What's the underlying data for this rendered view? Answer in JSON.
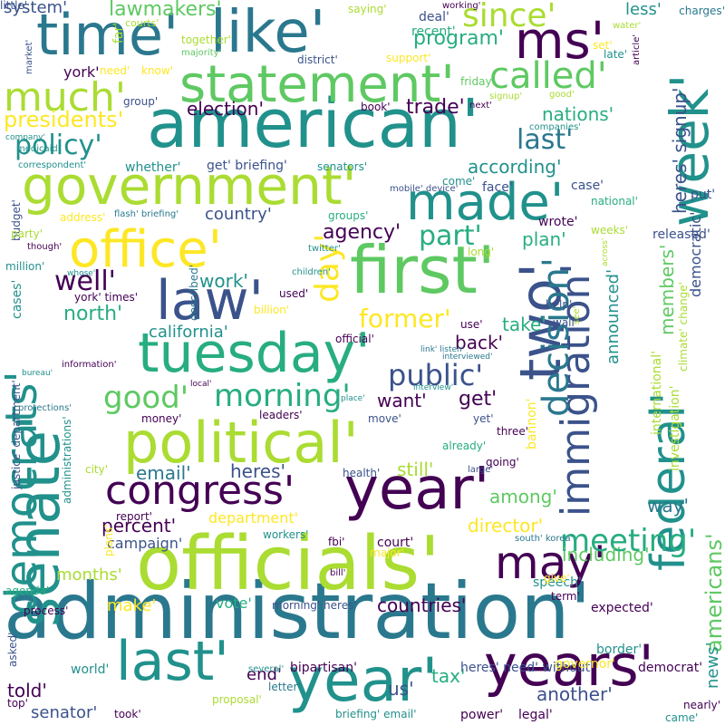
{
  "palette": [
    "#440154",
    "#3b528b",
    "#21918c",
    "#2a788e",
    "#27ad81",
    "#5ec962",
    "#aadc32",
    "#fde725"
  ],
  "words": [
    {
      "text": "administration'",
      "color": "#2a788e",
      "rotated": false
    },
    {
      "text": "officials'",
      "color": "#aadc32",
      "rotated": false
    },
    {
      "text": "american'",
      "color": "#21918c",
      "rotated": false
    },
    {
      "text": "senate'",
      "color": "#21918c",
      "rotated": true
    },
    {
      "text": "two'",
      "color": "#3b528b",
      "rotated": true
    },
    {
      "text": "year'",
      "color": "#440154",
      "rotated": false
    },
    {
      "text": "first'",
      "color": "#5ec962",
      "rotated": false
    },
    {
      "text": "government'",
      "color": "#aadc32",
      "rotated": false
    },
    {
      "text": "political'",
      "color": "#aadc32",
      "rotated": false
    },
    {
      "text": "tuesday'",
      "color": "#27ad81",
      "rotated": false
    },
    {
      "text": "statement'",
      "color": "#5ec962",
      "rotated": false
    },
    {
      "text": "like'",
      "color": "#2a788e",
      "rotated": false
    },
    {
      "text": "time'",
      "color": "#2a788e",
      "rotated": false
    },
    {
      "text": "ms'",
      "color": "#440154",
      "rotated": false
    },
    {
      "text": "week'",
      "color": "#21918c",
      "rotated": true
    },
    {
      "text": "federal'",
      "color": "#21918c",
      "rotated": true
    },
    {
      "text": "immigration'",
      "color": "#3b528b",
      "rotated": true
    },
    {
      "text": "democrats'",
      "color": "#21918c",
      "rotated": true
    },
    {
      "text": "office'",
      "color": "#fde725",
      "rotated": false
    },
    {
      "text": "law'",
      "color": "#3b528b",
      "rotated": false
    },
    {
      "text": "made'",
      "color": "#21918c",
      "rotated": false
    },
    {
      "text": "years'",
      "color": "#440154",
      "rotated": false
    },
    {
      "text": "last'",
      "color": "#21918c",
      "rotated": false
    },
    {
      "text": "year'",
      "color": "#21918c",
      "rotated": false
    },
    {
      "text": "congress'",
      "color": "#440154",
      "rotated": false
    },
    {
      "text": "may'",
      "color": "#440154",
      "rotated": false
    },
    {
      "text": "much'",
      "color": "#aadc32",
      "rotated": false
    },
    {
      "text": "called'",
      "color": "#5ec962",
      "rotated": false
    },
    {
      "text": "since'",
      "color": "#aadc32",
      "rotated": false
    },
    {
      "text": "meeting'",
      "color": "#27ad81",
      "rotated": false
    },
    {
      "text": "decision'",
      "color": "#2a788e",
      "rotated": true
    },
    {
      "text": "day'",
      "color": "#fde725",
      "rotated": true
    },
    {
      "text": "public'",
      "color": "#3b528b",
      "rotated": false
    },
    {
      "text": "morning'",
      "color": "#27ad81",
      "rotated": false
    },
    {
      "text": "good'",
      "color": "#5ec962",
      "rotated": false
    },
    {
      "text": "policy'",
      "color": "#21918c",
      "rotated": false
    },
    {
      "text": "last'",
      "color": "#2a788e",
      "rotated": false
    },
    {
      "text": "part'",
      "color": "#27ad81",
      "rotated": false
    },
    {
      "text": "former'",
      "color": "#fde725",
      "rotated": false
    },
    {
      "text": "well'",
      "color": "#440154",
      "rotated": false
    },
    {
      "text": "presidents'",
      "color": "#fde725",
      "rotated": false
    },
    {
      "text": "program'",
      "color": "#27ad81",
      "rotated": false
    },
    {
      "text": "lawmakers'",
      "color": "#5ec962",
      "rotated": false
    },
    {
      "text": "election'",
      "color": "#440154",
      "rotated": false
    },
    {
      "text": "trade'",
      "color": "#440154",
      "rotated": false
    },
    {
      "text": "nations'",
      "color": "#27ad81",
      "rotated": false
    },
    {
      "text": "according'",
      "color": "#21918c",
      "rotated": false
    },
    {
      "text": "agency'",
      "color": "#440154",
      "rotated": false
    },
    {
      "text": "plan'",
      "color": "#27ad81",
      "rotated": false
    },
    {
      "text": "country'",
      "color": "#3b528b",
      "rotated": false
    },
    {
      "text": "california'",
      "color": "#21918c",
      "rotated": false
    },
    {
      "text": "north'",
      "color": "#27ad81",
      "rotated": false
    },
    {
      "text": "work'",
      "color": "#21918c",
      "rotated": false
    },
    {
      "text": "back'",
      "color": "#440154",
      "rotated": false
    },
    {
      "text": "take'",
      "color": "#27ad81",
      "rotated": false
    },
    {
      "text": "want'",
      "color": "#440154",
      "rotated": false
    },
    {
      "text": "get'",
      "color": "#440154",
      "rotated": false
    },
    {
      "text": "email'",
      "color": "#2a788e",
      "rotated": false
    },
    {
      "text": "heres'",
      "color": "#3b528b",
      "rotated": false
    },
    {
      "text": "still'",
      "color": "#aadc32",
      "rotated": false
    },
    {
      "text": "among'",
      "color": "#5ec962",
      "rotated": false
    },
    {
      "text": "director'",
      "color": "#fde725",
      "rotated": false
    },
    {
      "text": "percent'",
      "color": "#440154",
      "rotated": false
    },
    {
      "text": "department'",
      "color": "#fde725",
      "rotated": false
    },
    {
      "text": "campaign'",
      "color": "#3b528b",
      "rotated": false
    },
    {
      "text": "months'",
      "color": "#aadc32",
      "rotated": false
    },
    {
      "text": "including'",
      "color": "#5ec962",
      "rotated": false
    },
    {
      "text": "way'",
      "color": "#2a788e",
      "rotated": false
    },
    {
      "text": "countries'",
      "color": "#440154",
      "rotated": false
    },
    {
      "text": "make'",
      "color": "#fde725",
      "rotated": false
    },
    {
      "text": "vote'",
      "color": "#27ad81",
      "rotated": false
    },
    {
      "text": "told'",
      "color": "#440154",
      "rotated": false
    },
    {
      "text": "end'",
      "color": "#440154",
      "rotated": false
    },
    {
      "text": "us'",
      "color": "#3b528b",
      "rotated": false
    },
    {
      "text": "tax'",
      "color": "#27ad81",
      "rotated": false
    },
    {
      "text": "senator'",
      "color": "#3b528b",
      "rotated": false
    },
    {
      "text": "another'",
      "color": "#3b528b",
      "rotated": false
    },
    {
      "text": "americans'",
      "color": "#5ec962",
      "rotated": true
    },
    {
      "text": "news'",
      "color": "#21918c",
      "rotated": true
    },
    {
      "text": "heres' signup'",
      "color": "#3b528b",
      "rotated": true
    },
    {
      "text": "democratic'",
      "color": "#3b528b",
      "rotated": true
    },
    {
      "text": "members'",
      "color": "#5ec962",
      "rotated": true
    },
    {
      "text": "announced'",
      "color": "#21918c",
      "rotated": true
    },
    {
      "text": "system'",
      "color": "#3b528b",
      "rotated": false
    },
    {
      "text": "less'",
      "color": "#21918c",
      "rotated": false
    },
    {
      "text": "charges'",
      "color": "#2a788e",
      "rotated": false
    },
    {
      "text": "saying'",
      "color": "#aadc32",
      "rotated": false
    },
    {
      "text": "working'",
      "color": "#440154",
      "rotated": false
    },
    {
      "text": "deal'",
      "color": "#3b528b",
      "rotated": false
    },
    {
      "text": "recent'",
      "color": "#27ad81",
      "rotated": false
    },
    {
      "text": "courts'",
      "color": "#aadc32",
      "rotated": false
    },
    {
      "text": "far'",
      "color": "#aadc32",
      "rotated": true
    },
    {
      "text": "together'",
      "color": "#aadc32",
      "rotated": false
    },
    {
      "text": "majority'",
      "color": "#5ec962",
      "rotated": false
    },
    {
      "text": "market'",
      "color": "#3b528b",
      "rotated": true
    },
    {
      "text": "district'",
      "color": "#3b528b",
      "rotated": false
    },
    {
      "text": "support'",
      "color": "#fde725",
      "rotated": false
    },
    {
      "text": "york'",
      "color": "#440154",
      "rotated": false
    },
    {
      "text": "need'",
      "color": "#fde725",
      "rotated": false
    },
    {
      "text": "know'",
      "color": "#fde725",
      "rotated": false
    },
    {
      "text": "friday'",
      "color": "#5ec962",
      "rotated": false
    },
    {
      "text": "group'",
      "color": "#3b528b",
      "rotated": false
    },
    {
      "text": "book'",
      "color": "#440154",
      "rotated": false
    },
    {
      "text": "next'",
      "color": "#440154",
      "rotated": false
    },
    {
      "text": "signup'",
      "color": "#aadc32",
      "rotated": false
    },
    {
      "text": "good'",
      "color": "#aadc32",
      "rotated": false
    },
    {
      "text": "companies'",
      "color": "#21918c",
      "rotated": false
    },
    {
      "text": "article'",
      "color": "#440154",
      "rotated": true
    },
    {
      "text": "set'",
      "color": "#fde725",
      "rotated": false
    },
    {
      "text": "late'",
      "color": "#21918c",
      "rotated": false
    },
    {
      "text": "water'",
      "color": "#aadc32",
      "rotated": false
    },
    {
      "text": "company'",
      "color": "#21918c",
      "rotated": false
    },
    {
      "text": "medicaid'",
      "color": "#21918c",
      "rotated": false
    },
    {
      "text": "correspondent'",
      "color": "#21918c",
      "rotated": false
    },
    {
      "text": "whether'",
      "color": "#21918c",
      "rotated": false
    },
    {
      "text": "get' briefing'",
      "color": "#3b528b",
      "rotated": false
    },
    {
      "text": "senators'",
      "color": "#21918c",
      "rotated": false
    },
    {
      "text": "come'",
      "color": "#21918c",
      "rotated": false
    },
    {
      "text": "face'",
      "color": "#3b528b",
      "rotated": false
    },
    {
      "text": "case'",
      "color": "#3b528b",
      "rotated": false
    },
    {
      "text": "national'",
      "color": "#27ad81",
      "rotated": false
    },
    {
      "text": "put'",
      "color": "#3b528b",
      "rotated": false
    },
    {
      "text": "budget'",
      "color": "#3b528b",
      "rotated": true
    },
    {
      "text": "address'",
      "color": "#fde725",
      "rotated": false
    },
    {
      "text": "flash' briefing'",
      "color": "#2a788e",
      "rotated": false
    },
    {
      "text": "groups'",
      "color": "#27ad81",
      "rotated": false
    },
    {
      "text": "mobile' device'",
      "color": "#3b528b",
      "rotated": false
    },
    {
      "text": "wrote'",
      "color": "#440154",
      "rotated": false
    },
    {
      "text": "weeks'",
      "color": "#aadc32",
      "rotated": false
    },
    {
      "text": "released'",
      "color": "#3b528b",
      "rotated": false
    },
    {
      "text": "party'",
      "color": "#aadc32",
      "rotated": false
    },
    {
      "text": "though'",
      "color": "#440154",
      "rotated": false
    },
    {
      "text": "twitter'",
      "color": "#21918c",
      "rotated": false
    },
    {
      "text": "long'",
      "color": "#aadc32",
      "rotated": false
    },
    {
      "text": "across'",
      "color": "#aadc32",
      "rotated": true
    },
    {
      "text": "million'",
      "color": "#21918c",
      "rotated": false
    },
    {
      "text": "whose'",
      "color": "#21918c",
      "rotated": false
    },
    {
      "text": "children'",
      "color": "#21918c",
      "rotated": false
    },
    {
      "text": "described'",
      "color": "#2a788e",
      "rotated": true
    },
    {
      "text": "york' times'",
      "color": "#440154",
      "rotated": false
    },
    {
      "text": "used'",
      "color": "#440154",
      "rotated": false
    },
    {
      "text": "help'",
      "color": "#3b528b",
      "rotated": false
    },
    {
      "text": "wall'",
      "color": "#3b528b",
      "rotated": false
    },
    {
      "text": "cases'",
      "color": "#21918c",
      "rotated": true
    },
    {
      "text": "billion'",
      "color": "#fde725",
      "rotated": false
    },
    {
      "text": "use'",
      "color": "#440154",
      "rotated": false
    },
    {
      "text": "see'",
      "color": "#aadc32",
      "rotated": true
    },
    {
      "text": "official'",
      "color": "#440154",
      "rotated": false
    },
    {
      "text": "link' listen'",
      "color": "#2a788e",
      "rotated": false
    },
    {
      "text": "interviewed'",
      "color": "#2a788e",
      "rotated": false
    },
    {
      "text": "climate' change'",
      "color": "#aadc32",
      "rotated": true
    },
    {
      "text": "information'",
      "color": "#440154",
      "rotated": false
    },
    {
      "text": "bureau'",
      "color": "#21918c",
      "rotated": false
    },
    {
      "text": "local'",
      "color": "#440154",
      "rotated": false
    },
    {
      "text": "interview'",
      "color": "#21918c",
      "rotated": false
    },
    {
      "text": "justice' department'",
      "color": "#3b528b",
      "rotated": true
    },
    {
      "text": "protections'",
      "color": "#2a788e",
      "rotated": false
    },
    {
      "text": "place'",
      "color": "#21918c",
      "rotated": false
    },
    {
      "text": "leaders'",
      "color": "#440154",
      "rotated": false
    },
    {
      "text": "move'",
      "color": "#3b528b",
      "rotated": false
    },
    {
      "text": "yet'",
      "color": "#3b528b",
      "rotated": false
    },
    {
      "text": "bannon'",
      "color": "#fde725",
      "rotated": true
    },
    {
      "text": "international'",
      "color": "#aadc32",
      "rotated": true
    },
    {
      "text": "investigation'",
      "color": "#aadc32",
      "rotated": true
    },
    {
      "text": "money'",
      "color": "#440154",
      "rotated": false
    },
    {
      "text": "three'",
      "color": "#440154",
      "rotated": false
    },
    {
      "text": "already'",
      "color": "#27ad81",
      "rotated": false
    },
    {
      "text": "administrations'",
      "color": "#21918c",
      "rotated": true
    },
    {
      "text": "health'",
      "color": "#3b528b",
      "rotated": false
    },
    {
      "text": "going'",
      "color": "#440154",
      "rotated": false
    },
    {
      "text": "large'",
      "color": "#3b528b",
      "rotated": false
    },
    {
      "text": "city'",
      "color": "#aadc32",
      "rotated": false
    },
    {
      "text": "report'",
      "color": "#440154",
      "rotated": false
    },
    {
      "text": "south' korea'",
      "color": "#2a788e",
      "rotated": false
    },
    {
      "text": "workers'",
      "color": "#21918c",
      "rotated": false
    },
    {
      "text": "major'",
      "color": "#fde725",
      "rotated": false
    },
    {
      "text": "fbi'",
      "color": "#440154",
      "rotated": false
    },
    {
      "text": "court'",
      "color": "#440154",
      "rotated": false
    },
    {
      "text": "speech'",
      "color": "#21918c",
      "rotated": false
    },
    {
      "text": "plans'",
      "color": "#fde725",
      "rotated": true
    },
    {
      "text": "bill'",
      "color": "#440154",
      "rotated": false
    },
    {
      "text": "give'",
      "color": "#fde725",
      "rotated": false
    },
    {
      "text": "term'",
      "color": "#440154",
      "rotated": false
    },
    {
      "text": "agenda'",
      "color": "#27ad81",
      "rotated": false
    },
    {
      "text": "morning' heres'",
      "color": "#3b528b",
      "rotated": false
    },
    {
      "text": "expected'",
      "color": "#440154",
      "rotated": false
    },
    {
      "text": "process'",
      "color": "#440154",
      "rotated": false
    },
    {
      "text": "border'",
      "color": "#21918c",
      "rotated": false
    },
    {
      "text": "asked'",
      "color": "#3b528b",
      "rotated": true
    },
    {
      "text": "world'",
      "color": "#21918c",
      "rotated": false
    },
    {
      "text": "bipartisan'",
      "color": "#440154",
      "rotated": false
    },
    {
      "text": "heres' need' without'",
      "color": "#3b528b",
      "rotated": false
    },
    {
      "text": "governor'",
      "color": "#fde725",
      "rotated": false
    },
    {
      "text": "democrat'",
      "color": "#440154",
      "rotated": false
    },
    {
      "text": "several'",
      "color": "#21918c",
      "rotated": false
    },
    {
      "text": "letter'",
      "color": "#2a788e",
      "rotated": false
    },
    {
      "text": "top'",
      "color": "#440154",
      "rotated": false
    },
    {
      "text": "proposal'",
      "color": "#aadc32",
      "rotated": false
    },
    {
      "text": "took'",
      "color": "#440154",
      "rotated": false
    },
    {
      "text": "briefing' email'",
      "color": "#21918c",
      "rotated": false
    },
    {
      "text": "power'",
      "color": "#440154",
      "rotated": false
    },
    {
      "text": "legal'",
      "color": "#440154",
      "rotated": false
    },
    {
      "text": "nearly'",
      "color": "#440154",
      "rotated": false
    },
    {
      "text": "came'",
      "color": "#21918c",
      "rotated": false
    },
    {
      "text": "little'",
      "color": "#3b528b",
      "rotated": false
    }
  ]
}
